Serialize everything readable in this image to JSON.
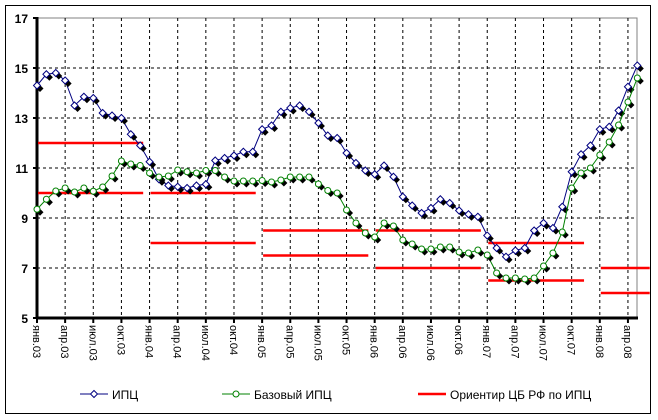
{
  "chart_data": {
    "type": "line",
    "title": "",
    "xlabel": "",
    "ylabel": "",
    "ylim": [
      5,
      17
    ],
    "yticks": [
      "5",
      "7",
      "9",
      "11",
      "13",
      "15",
      "17"
    ],
    "grid": true,
    "legend_position": "bottom",
    "x_months": 65,
    "x_ticks": [
      "янв.03",
      "апр.03",
      "июл.03",
      "окт.03",
      "янв.04",
      "апр.04",
      "июл.04",
      "окт.04",
      "янв.05",
      "апр.05",
      "июл.05",
      "окт.05",
      "янв.06",
      "апр.06",
      "июл.06",
      "окт.06",
      "янв.07",
      "апр.07",
      "июл.07",
      "окт.07",
      "янв.08",
      "апр.08"
    ],
    "series": [
      {
        "name": "ИПЦ",
        "color": "#000080",
        "values": [
          14.3,
          14.75,
          14.8,
          14.5,
          13.5,
          13.85,
          13.8,
          13.2,
          13.1,
          13.0,
          12.35,
          11.9,
          11.25,
          10.55,
          10.3,
          10.25,
          10.2,
          10.3,
          10.35,
          11.3,
          11.4,
          11.5,
          11.65,
          11.65,
          12.55,
          12.7,
          13.25,
          13.4,
          13.5,
          13.25,
          12.8,
          12.3,
          12.2,
          11.6,
          11.2,
          10.9,
          10.75,
          11.1,
          10.65,
          9.85,
          9.5,
          9.2,
          9.4,
          9.75,
          9.6,
          9.3,
          9.15,
          9.05,
          8.3,
          7.8,
          7.45,
          7.7,
          7.8,
          8.5,
          8.8,
          8.6,
          9.45,
          10.85,
          11.55,
          11.9,
          12.55,
          12.65,
          13.3,
          14.25,
          15.1
        ]
      },
      {
        "name": "Базовый ИПЦ",
        "color": "#008000",
        "values": [
          9.35,
          9.75,
          10.08,
          10.2,
          10.04,
          10.2,
          10.07,
          10.24,
          10.68,
          11.28,
          11.16,
          11.1,
          10.8,
          10.64,
          10.68,
          10.92,
          10.85,
          10.8,
          10.9,
          10.9,
          10.64,
          10.48,
          10.48,
          10.48,
          10.5,
          10.44,
          10.52,
          10.64,
          10.64,
          10.64,
          10.36,
          10.1,
          10.0,
          9.32,
          8.8,
          8.4,
          8.24,
          8.8,
          8.68,
          8.12,
          7.96,
          7.76,
          7.76,
          7.84,
          7.84,
          7.64,
          7.6,
          7.72,
          7.52,
          6.8,
          6.6,
          6.6,
          6.56,
          6.6,
          7.08,
          7.6,
          8.44,
          10.2,
          10.8,
          11.0,
          11.52,
          12.04,
          12.72,
          13.64,
          14.6
        ]
      }
    ],
    "targets": {
      "name": "Ориентир ЦБ РФ по ИПЦ",
      "color": "#ff0000",
      "ranges": [
        {
          "year": 2003,
          "low": 10,
          "high": 12,
          "months": 12
        },
        {
          "year": 2004,
          "low": 8,
          "high": 10,
          "months": 12
        },
        {
          "year": 2005,
          "low": 7.5,
          "high": 8.5,
          "months": 12
        },
        {
          "year": 2006,
          "low": 7,
          "high": 8.5,
          "months": 12
        },
        {
          "year": 2007,
          "low": 6.5,
          "high": 8,
          "months": 11
        },
        {
          "year": 2008,
          "low": 6,
          "high": 7,
          "months": 6
        }
      ]
    }
  }
}
